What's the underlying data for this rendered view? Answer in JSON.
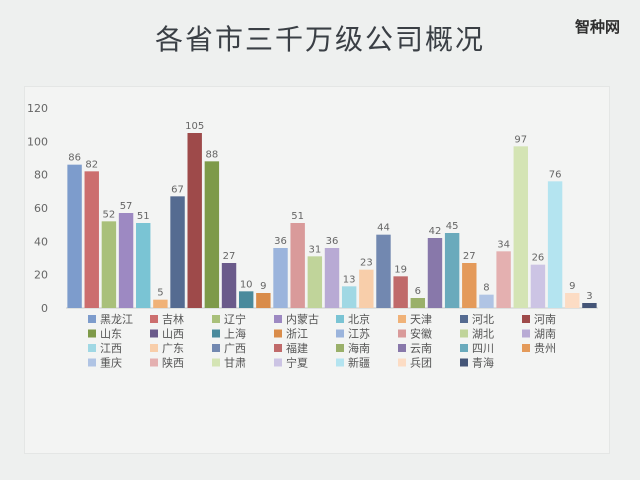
{
  "title": "各省市三千万级公司概况",
  "watermark": "智种网",
  "chart_data": {
    "type": "bar",
    "title": "各省市三千万级公司概况",
    "xlabel": "",
    "ylabel": "",
    "ylim": [
      0,
      120
    ],
    "yticks": [
      0,
      20,
      40,
      60,
      80,
      100,
      120
    ],
    "grid": false,
    "legend_position": "bottom",
    "categories": [
      "黑龙江",
      "吉林",
      "辽宁",
      "内蒙古",
      "北京",
      "天津",
      "河北",
      "河南",
      "山东",
      "山西",
      "上海",
      "浙江",
      "江苏",
      "安徽",
      "湖北",
      "湖南",
      "江西",
      "广东",
      "广西",
      "福建",
      "海南",
      "云南",
      "四川",
      "贵州",
      "重庆",
      "陕西",
      "甘肃",
      "宁夏",
      "新疆",
      "兵团",
      "青海"
    ],
    "values": [
      86,
      82,
      52,
      57,
      51,
      5,
      67,
      105,
      88,
      27,
      10,
      9,
      36,
      51,
      31,
      36,
      13,
      23,
      44,
      19,
      6,
      42,
      45,
      27,
      8,
      34,
      97,
      26,
      76,
      9,
      3
    ],
    "colors": [
      "#7d9ccc",
      "#cc6e6e",
      "#a9c07a",
      "#9d89c2",
      "#7ac4d4",
      "#f0b278",
      "#556b91",
      "#9e4a4a",
      "#7e9a49",
      "#6a5a8a",
      "#4a8a9c",
      "#d98c4a",
      "#9bb4dc",
      "#d99a9a",
      "#c0d49a",
      "#b8aad4",
      "#a0d8e4",
      "#f8ceaa",
      "#7288b0",
      "#c06a6a",
      "#9ab06a",
      "#8878aa",
      "#6aaabc",
      "#e49a5a",
      "#b0c4e4",
      "#e4b0b0",
      "#d4e4b4",
      "#ccc4e4",
      "#b4e4f0",
      "#fcdcc4",
      "#445577"
    ]
  }
}
